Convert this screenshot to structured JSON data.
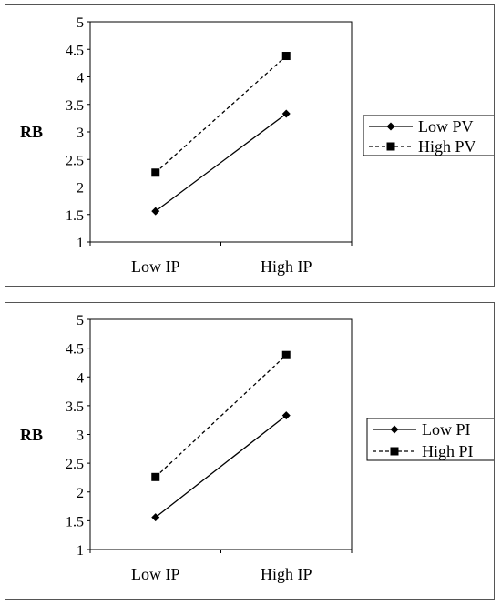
{
  "chart_data": [
    {
      "type": "line",
      "ylabel": "RB",
      "categories": [
        "Low IP",
        "High IP"
      ],
      "ylim": [
        1,
        5
      ],
      "yticks": [
        "1",
        "1.5",
        "2",
        "2.5",
        "3",
        "3.5",
        "4",
        "4.5",
        "5"
      ],
      "legend_position": "right",
      "series": [
        {
          "name": "Low PV",
          "values": [
            1.56,
            3.33
          ],
          "marker": "diamond",
          "line": "solid"
        },
        {
          "name": "High PV",
          "values": [
            2.26,
            4.38
          ],
          "marker": "square",
          "line": "dashed"
        }
      ]
    },
    {
      "type": "line",
      "ylabel": "RB",
      "categories": [
        "Low IP",
        "High IP"
      ],
      "ylim": [
        1,
        5
      ],
      "yticks": [
        "1",
        "1.5",
        "2",
        "2.5",
        "3",
        "3.5",
        "4",
        "4.5",
        "5"
      ],
      "legend_position": "right",
      "series": [
        {
          "name": "Low PI",
          "values": [
            1.56,
            3.33
          ],
          "marker": "diamond",
          "line": "solid"
        },
        {
          "name": "High PI",
          "values": [
            2.26,
            4.38
          ],
          "marker": "square",
          "line": "dashed"
        }
      ]
    }
  ]
}
